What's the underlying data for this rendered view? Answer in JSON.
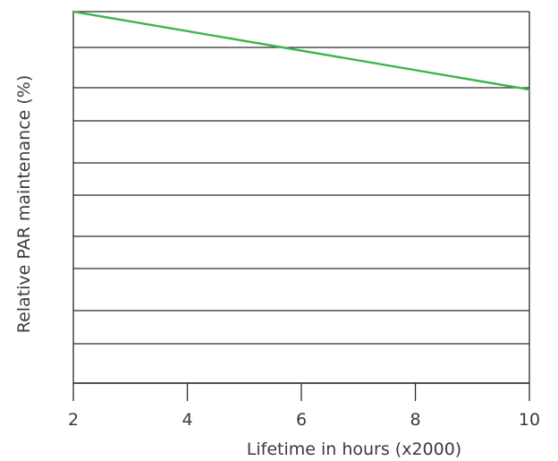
{
  "chart_data": {
    "type": "line",
    "title": "",
    "xlabel": "Lifetime in hours (x2000)",
    "ylabel": "Relative PAR maintenance (%)",
    "xlim": [
      2,
      10
    ],
    "x_ticks": [
      2,
      4,
      6,
      8,
      10
    ],
    "y_gridlines": 11,
    "y_tick_labels_shown": false,
    "grid": "horizontal",
    "series": [
      {
        "color": "#3cb54a",
        "x": [
          2,
          10
        ],
        "y_relative_to_frame": [
          1.0,
          0.79
        ]
      }
    ]
  }
}
